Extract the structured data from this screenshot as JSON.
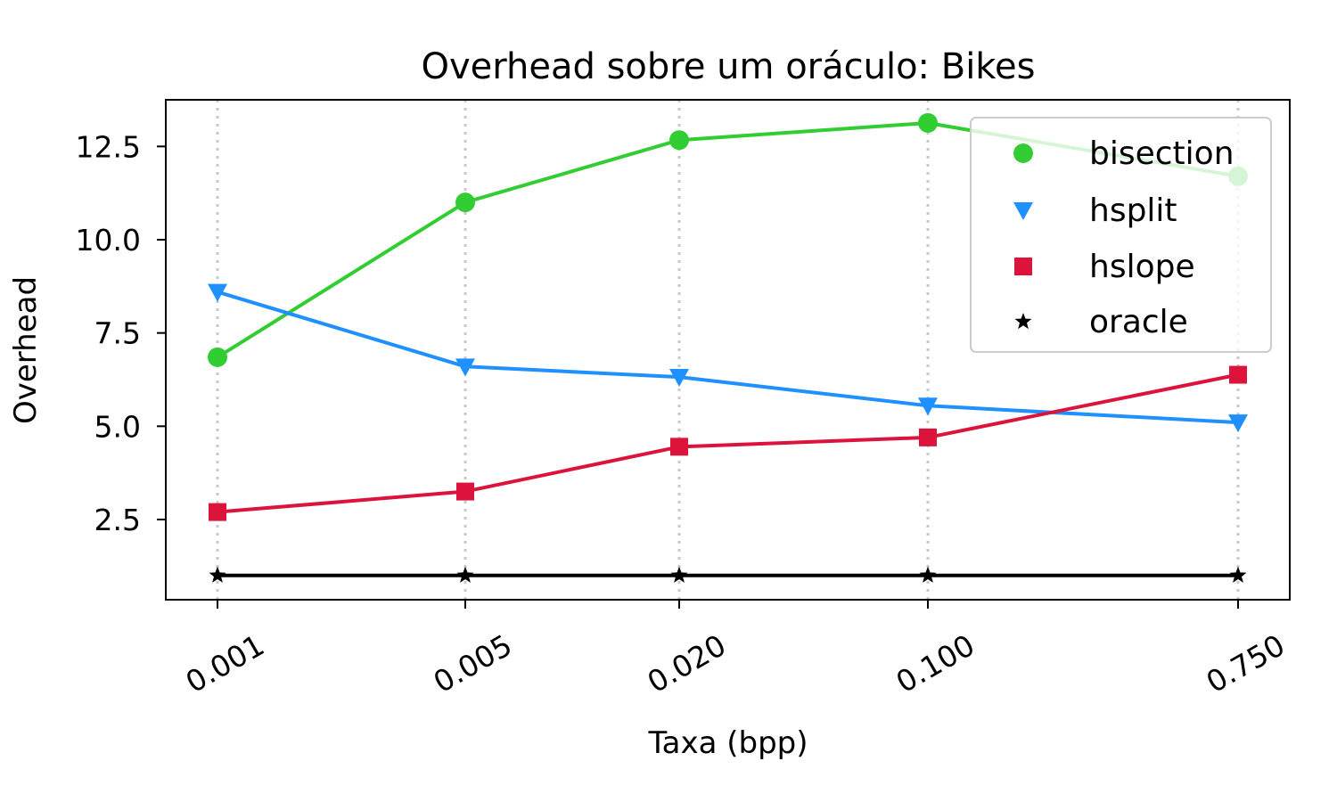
{
  "chart_data": {
    "type": "line",
    "title": "Overhead sobre um oráculo: Bikes",
    "xlabel": "Taxa (bpp)",
    "ylabel": "Overhead",
    "x": [
      "0.001",
      "0.005",
      "0.020",
      "0.100",
      "0.750"
    ],
    "ylim": [
      0.35,
      13.75
    ],
    "yticks": [
      "2.5",
      "5.0",
      "7.5",
      "10.0",
      "12.5"
    ],
    "grid": "vertical dotted",
    "legend_position": "top-right",
    "series": [
      {
        "name": "bisection",
        "color": "#32cd32",
        "marker": "circle",
        "values": [
          6.85,
          11.0,
          12.67,
          13.13,
          11.7
        ]
      },
      {
        "name": "hsplit",
        "color": "#1e90ff",
        "marker": "triangle-down",
        "values": [
          8.6,
          6.6,
          6.32,
          5.55,
          5.1
        ]
      },
      {
        "name": "hslope",
        "color": "#dc143c",
        "marker": "square",
        "values": [
          2.7,
          3.25,
          4.45,
          4.7,
          6.38
        ]
      },
      {
        "name": "oracle",
        "color": "#000000",
        "marker": "star",
        "values": [
          1.0,
          1.0,
          1.0,
          1.0,
          1.0
        ]
      }
    ]
  }
}
